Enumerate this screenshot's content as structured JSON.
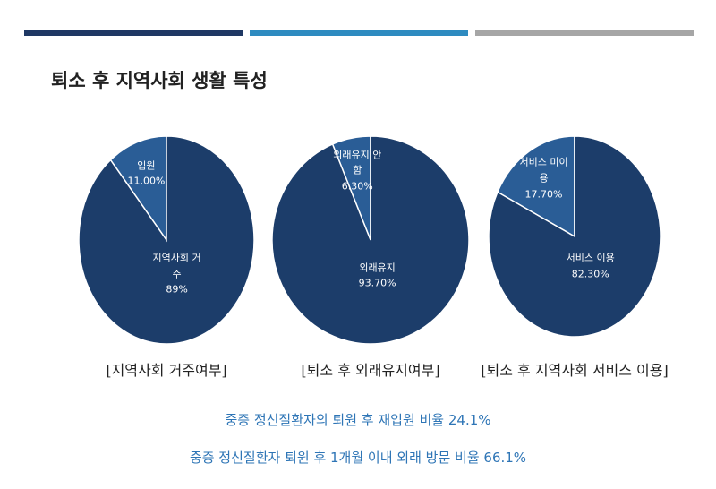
{
  "title": "퇴소 후 지역사회 생활 특성",
  "notes": [
    "중증 정신질환자의 퇴원 후 재입원 비율 24.1%",
    "중증 정신질환자 퇴원 후 1개월 이내 외래 방문 비율 66.1%"
  ],
  "chart_data": [
    {
      "type": "pie",
      "title": "[지역사회 거주여부]",
      "categories": [
        "입원",
        "지역사회 거주"
      ],
      "values": [
        11,
        89
      ],
      "value_labels": [
        "11.00%",
        "89%"
      ],
      "colors": [
        "#2a5d96",
        "#1c3d6a"
      ]
    },
    {
      "type": "pie",
      "title": "[퇴소 후 외래유지여부]",
      "categories": [
        "외래유지 안함",
        "외래유지"
      ],
      "values": [
        6.3,
        93.7
      ],
      "value_labels": [
        "6.30%",
        "93.70%"
      ],
      "colors": [
        "#2a5d96",
        "#1c3d6a"
      ]
    },
    {
      "type": "pie",
      "title": "[퇴소 후 지역사회 서비스 이용]",
      "categories": [
        "서비스 미이용",
        "서비스 이용"
      ],
      "values": [
        17.7,
        82.3
      ],
      "value_labels": [
        "17.70%",
        "82.30%"
      ],
      "colors": [
        "#2a5d96",
        "#1c3d6a"
      ]
    }
  ]
}
